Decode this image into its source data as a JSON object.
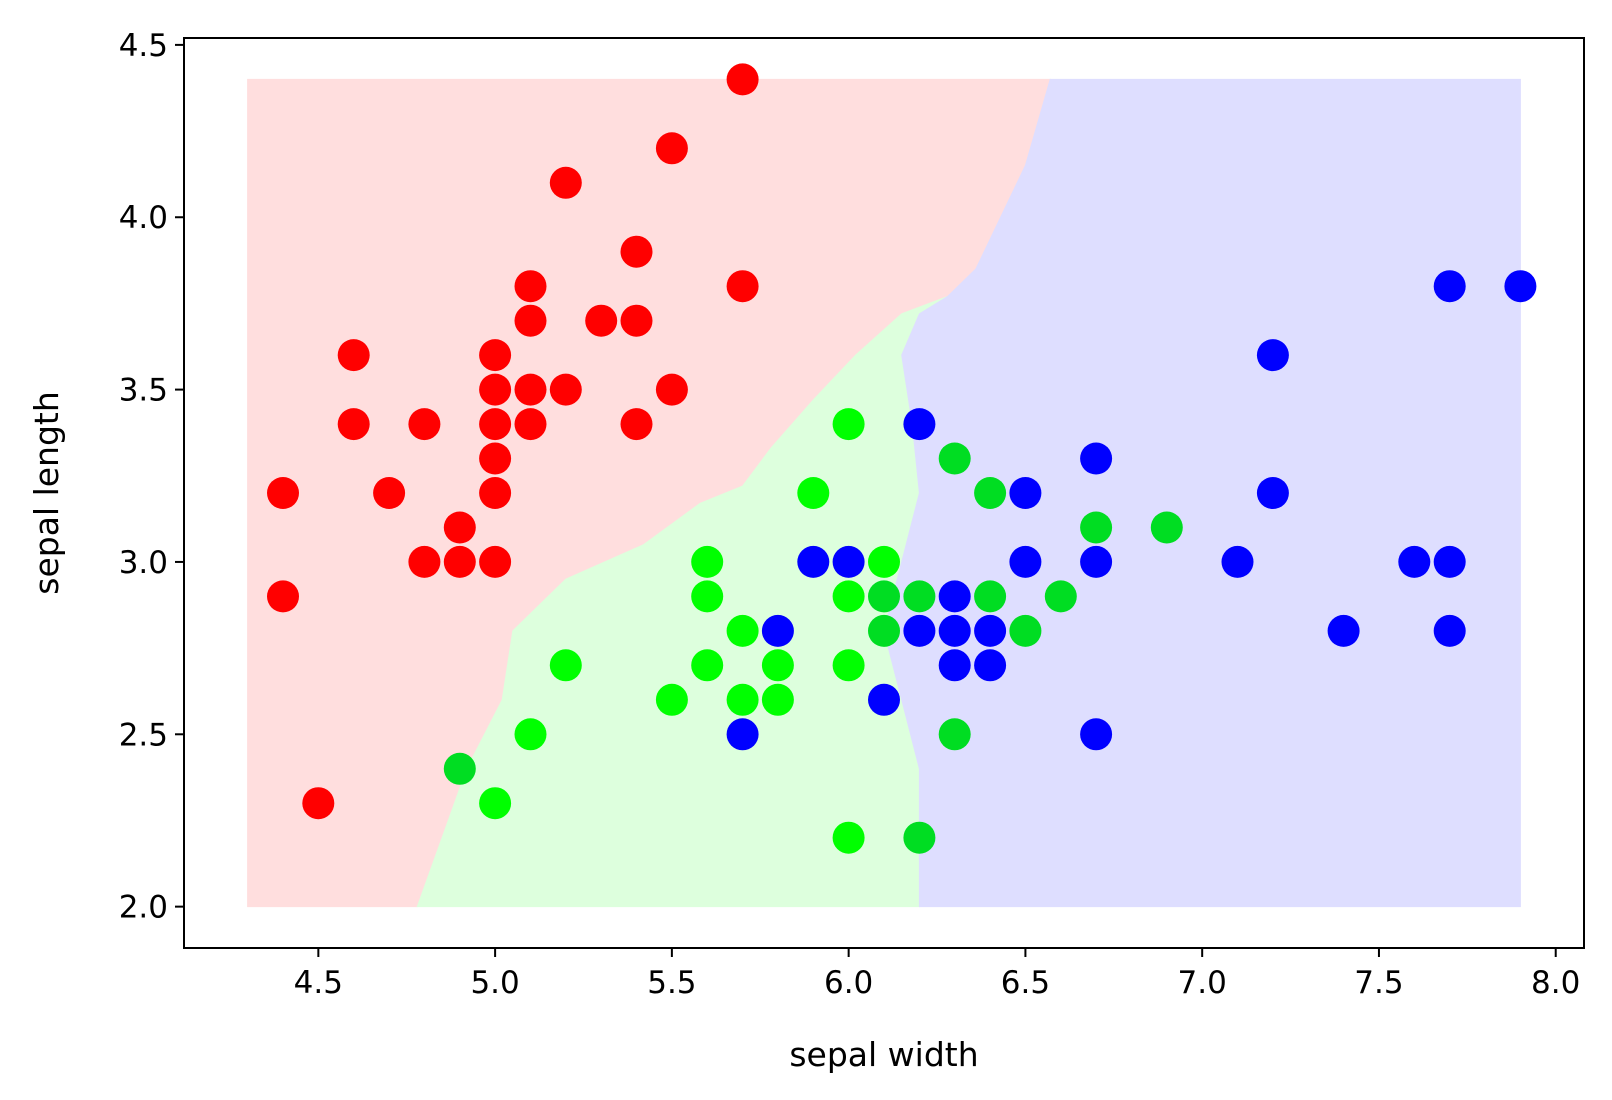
{
  "chart_data": {
    "type": "scatter",
    "title": "",
    "xlabel": "sepal width",
    "ylabel": "sepal length",
    "xlim": [
      4.12,
      8.08
    ],
    "ylim": [
      1.88,
      4.52
    ],
    "x_ticks": [
      "4.5",
      "5.0",
      "5.5",
      "6.0",
      "6.5",
      "7.0",
      "7.5",
      "8.0"
    ],
    "y_ticks": [
      "2.0",
      "2.5",
      "3.0",
      "3.5",
      "4.0",
      "4.5"
    ],
    "grid": false,
    "legend": "none",
    "background_regions": {
      "x_range": [
        4.3,
        7.9
      ],
      "y_range": [
        2.0,
        4.4
      ],
      "regions": [
        {
          "class": "red",
          "color": "#ffdede",
          "polygon": [
            [
              4.3,
              2.0
            ],
            [
              4.78,
              2.0
            ],
            [
              4.85,
              2.2
            ],
            [
              4.92,
              2.4
            ],
            [
              5.02,
              2.6
            ],
            [
              5.05,
              2.8
            ],
            [
              5.2,
              2.95
            ],
            [
              5.42,
              3.05
            ],
            [
              5.58,
              3.17
            ],
            [
              5.7,
              3.22
            ],
            [
              5.78,
              3.33
            ],
            [
              5.9,
              3.47
            ],
            [
              6.02,
              3.6
            ],
            [
              6.15,
              3.72
            ],
            [
              6.28,
              3.77
            ],
            [
              6.36,
              3.85
            ],
            [
              6.5,
              4.15
            ],
            [
              6.57,
              4.4
            ],
            [
              4.3,
              4.4
            ]
          ]
        },
        {
          "class": "green",
          "color": "#ddffdd",
          "polygon": [
            [
              4.78,
              2.0
            ],
            [
              6.2,
              2.0
            ],
            [
              6.2,
              2.4
            ],
            [
              6.15,
              2.6
            ],
            [
              6.1,
              2.8
            ],
            [
              6.2,
              3.2
            ],
            [
              6.18,
              3.4
            ],
            [
              6.15,
              3.6
            ],
            [
              6.2,
              3.72
            ],
            [
              6.28,
              3.77
            ],
            [
              6.15,
              3.72
            ],
            [
              6.02,
              3.6
            ],
            [
              5.9,
              3.47
            ],
            [
              5.78,
              3.33
            ],
            [
              5.7,
              3.22
            ],
            [
              5.58,
              3.17
            ],
            [
              5.42,
              3.05
            ],
            [
              5.2,
              2.95
            ],
            [
              5.05,
              2.8
            ],
            [
              5.02,
              2.6
            ],
            [
              4.92,
              2.4
            ],
            [
              4.85,
              2.2
            ]
          ]
        },
        {
          "class": "blue",
          "color": "#dedeff",
          "polygon": [
            [
              6.2,
              2.0
            ],
            [
              7.9,
              2.0
            ],
            [
              7.9,
              4.4
            ],
            [
              6.57,
              4.4
            ],
            [
              6.5,
              4.15
            ],
            [
              6.36,
              3.85
            ],
            [
              6.28,
              3.77
            ],
            [
              6.2,
              3.72
            ],
            [
              6.15,
              3.6
            ],
            [
              6.18,
              3.4
            ],
            [
              6.2,
              3.2
            ],
            [
              6.1,
              2.8
            ],
            [
              6.15,
              2.6
            ],
            [
              6.2,
              2.4
            ]
          ]
        }
      ]
    },
    "series": [
      {
        "color": "#ff0000",
        "points": [
          [
            5.7,
            4.4
          ],
          [
            5.5,
            4.2
          ],
          [
            5.2,
            4.1
          ],
          [
            5.4,
            3.9
          ],
          [
            5.1,
            3.8
          ],
          [
            5.7,
            3.8
          ],
          [
            5.1,
            3.7
          ],
          [
            5.3,
            3.7
          ],
          [
            5.4,
            3.7
          ],
          [
            4.6,
            3.6
          ],
          [
            5.0,
            3.6
          ],
          [
            5.0,
            3.5
          ],
          [
            5.1,
            3.5
          ],
          [
            5.2,
            3.5
          ],
          [
            5.5,
            3.5
          ],
          [
            4.6,
            3.4
          ],
          [
            4.8,
            3.4
          ],
          [
            5.0,
            3.4
          ],
          [
            5.1,
            3.4
          ],
          [
            5.4,
            3.4
          ],
          [
            5.0,
            3.3
          ],
          [
            4.4,
            3.2
          ],
          [
            4.7,
            3.2
          ],
          [
            5.0,
            3.2
          ],
          [
            4.9,
            3.1
          ],
          [
            4.8,
            3.0
          ],
          [
            4.9,
            3.0
          ],
          [
            5.0,
            3.0
          ],
          [
            4.4,
            2.9
          ],
          [
            4.5,
            2.3
          ]
        ]
      },
      {
        "color": "#00ff00",
        "points": [
          [
            6.0,
            3.4
          ],
          [
            5.9,
            3.2
          ],
          [
            5.6,
            3.0
          ],
          [
            6.1,
            3.0
          ],
          [
            5.6,
            2.9
          ],
          [
            6.0,
            2.9
          ],
          [
            5.7,
            2.8
          ],
          [
            5.2,
            2.7
          ],
          [
            5.6,
            2.7
          ],
          [
            5.8,
            2.7
          ],
          [
            6.0,
            2.7
          ],
          [
            5.5,
            2.6
          ],
          [
            5.7,
            2.6
          ],
          [
            5.8,
            2.6
          ],
          [
            5.1,
            2.5
          ],
          [
            5.0,
            2.3
          ],
          [
            6.0,
            2.2
          ]
        ]
      },
      {
        "color": "#00dd22",
        "points": [
          [
            6.3,
            3.3
          ],
          [
            6.4,
            3.2
          ],
          [
            6.7,
            3.1
          ],
          [
            6.9,
            3.1
          ],
          [
            6.1,
            2.9
          ],
          [
            6.2,
            2.9
          ],
          [
            6.4,
            2.9
          ],
          [
            6.6,
            2.9
          ],
          [
            6.1,
            2.8
          ],
          [
            6.5,
            2.8
          ],
          [
            6.3,
            2.5
          ],
          [
            4.9,
            2.4
          ],
          [
            6.2,
            2.2
          ]
        ]
      },
      {
        "color": "#0000ff",
        "points": [
          [
            7.7,
            3.8
          ],
          [
            7.9,
            3.8
          ],
          [
            7.2,
            3.6
          ],
          [
            6.2,
            3.4
          ],
          [
            6.7,
            3.3
          ],
          [
            6.5,
            3.2
          ],
          [
            7.2,
            3.2
          ],
          [
            5.9,
            3.0
          ],
          [
            6.0,
            3.0
          ],
          [
            6.5,
            3.0
          ],
          [
            6.7,
            3.0
          ],
          [
            7.1,
            3.0
          ],
          [
            7.6,
            3.0
          ],
          [
            7.7,
            3.0
          ],
          [
            6.3,
            2.9
          ],
          [
            5.8,
            2.8
          ],
          [
            6.2,
            2.8
          ],
          [
            6.3,
            2.8
          ],
          [
            6.4,
            2.8
          ],
          [
            7.4,
            2.8
          ],
          [
            7.7,
            2.8
          ],
          [
            6.3,
            2.7
          ],
          [
            6.4,
            2.7
          ],
          [
            6.1,
            2.6
          ],
          [
            5.7,
            2.5
          ],
          [
            6.7,
            2.5
          ]
        ]
      }
    ]
  }
}
